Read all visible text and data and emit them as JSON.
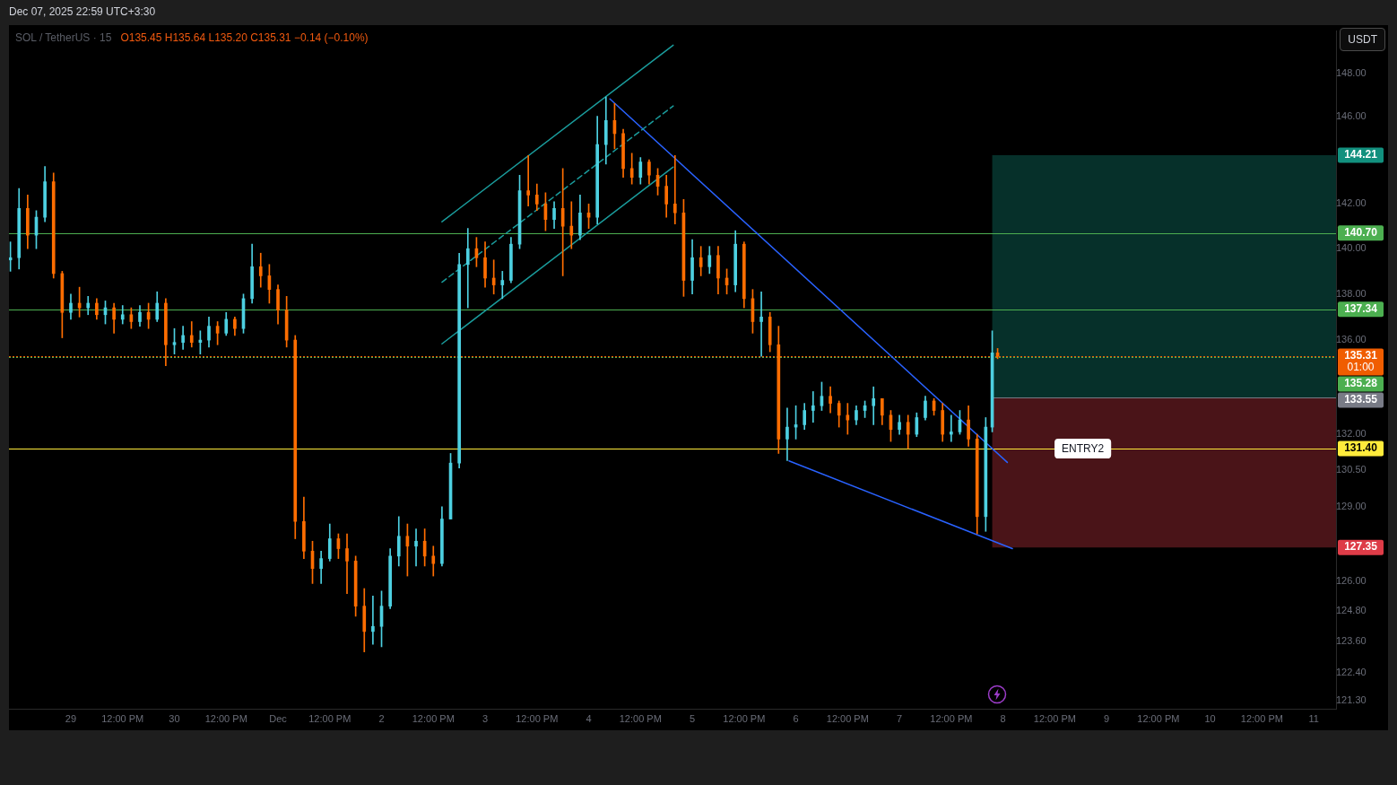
{
  "chart_data": {
    "type": "candlestick",
    "title": "SOL / TetherUS · 15",
    "subtitle": "O135.45 H135.64 L135.20 C135.31 −0.14 (−0.10%)",
    "ylabel": "USDT",
    "log": true,
    "annotations": [
      "Dec 07, 2025 22:59 UTC+3:30",
      "01:00",
      {
        "text": "ENTRY2",
        "x": "2025-12-08T18:30",
        "y": 131.4
      }
    ],
    "x": [
      "2025-11-28T10:00",
      "2025-11-28T12:00",
      "2025-11-28T14:00",
      "2025-11-28T16:00",
      "2025-11-28T18:00",
      "2025-11-28T20:00",
      "2025-11-28T22:00",
      "2025-11-29T00:00",
      "2025-11-29T02:00",
      "2025-11-29T04:00",
      "2025-11-29T06:00",
      "2025-11-29T08:00",
      "2025-11-29T10:00",
      "2025-11-29T12:00",
      "2025-11-29T14:00",
      "2025-11-29T16:00",
      "2025-11-29T18:00",
      "2025-11-29T20:00",
      "2025-11-29T22:00",
      "2025-11-30T00:00",
      "2025-11-30T02:00",
      "2025-11-30T04:00",
      "2025-11-30T06:00",
      "2025-11-30T08:00",
      "2025-11-30T10:00",
      "2025-11-30T12:00",
      "2025-11-30T14:00",
      "2025-11-30T16:00",
      "2025-11-30T18:00",
      "2025-11-30T20:00",
      "2025-11-30T22:00",
      "2025-12-01T00:00",
      "2025-12-01T02:00",
      "2025-12-01T04:00",
      "2025-12-01T06:00",
      "2025-12-01T08:00",
      "2025-12-01T10:00",
      "2025-12-01T12:00",
      "2025-12-01T14:00",
      "2025-12-01T16:00",
      "2025-12-01T18:00",
      "2025-12-01T20:00",
      "2025-12-01T22:00",
      "2025-12-02T00:00",
      "2025-12-02T02:00",
      "2025-12-02T04:00",
      "2025-12-02T06:00",
      "2025-12-02T08:00",
      "2025-12-02T10:00",
      "2025-12-02T12:00",
      "2025-12-02T14:00",
      "2025-12-02T16:00",
      "2025-12-02T18:00",
      "2025-12-02T20:00",
      "2025-12-02T22:00",
      "2025-12-03T00:00",
      "2025-12-03T02:00",
      "2025-12-03T04:00",
      "2025-12-03T06:00",
      "2025-12-03T08:00",
      "2025-12-03T10:00",
      "2025-12-03T12:00",
      "2025-12-03T14:00",
      "2025-12-03T16:00",
      "2025-12-03T18:00",
      "2025-12-03T20:00",
      "2025-12-03T22:00",
      "2025-12-04T00:00",
      "2025-12-04T02:00",
      "2025-12-04T04:00",
      "2025-12-04T06:00",
      "2025-12-04T08:00",
      "2025-12-04T10:00",
      "2025-12-04T12:00",
      "2025-12-04T14:00",
      "2025-12-04T16:00",
      "2025-12-04T18:00",
      "2025-12-04T20:00",
      "2025-12-04T22:00",
      "2025-12-05T00:00",
      "2025-12-05T02:00",
      "2025-12-05T04:00",
      "2025-12-05T06:00",
      "2025-12-05T08:00",
      "2025-12-05T10:00",
      "2025-12-05T12:00",
      "2025-12-05T14:00",
      "2025-12-05T16:00",
      "2025-12-05T18:00",
      "2025-12-05T20:00",
      "2025-12-05T22:00",
      "2025-12-06T00:00",
      "2025-12-06T02:00",
      "2025-12-06T04:00",
      "2025-12-06T06:00",
      "2025-12-06T08:00",
      "2025-12-06T10:00",
      "2025-12-06T12:00",
      "2025-12-06T14:00",
      "2025-12-06T16:00",
      "2025-12-06T18:00",
      "2025-12-06T20:00",
      "2025-12-06T22:00",
      "2025-12-07T00:00",
      "2025-12-07T02:00",
      "2025-12-07T04:00",
      "2025-12-07T06:00",
      "2025-12-07T08:00",
      "2025-12-07T10:00",
      "2025-12-07T12:00",
      "2025-12-07T14:00",
      "2025-12-07T16:00",
      "2025-12-07T18:00",
      "2025-12-07T20:00",
      "2025-12-07T21:30",
      "2025-12-07T22:45"
    ],
    "ohlc": [
      [
        139.5,
        140.3,
        139.0,
        139.6
      ],
      [
        139.6,
        142.7,
        139.1,
        141.8
      ],
      [
        141.8,
        142.4,
        140.0,
        140.6
      ],
      [
        140.6,
        141.7,
        140.0,
        141.4
      ],
      [
        141.4,
        143.7,
        141.2,
        143.0
      ],
      [
        143.0,
        143.4,
        138.7,
        138.9
      ],
      [
        138.9,
        139.0,
        136.1,
        137.2
      ],
      [
        137.2,
        138.0,
        136.9,
        137.6
      ],
      [
        137.6,
        138.3,
        137.0,
        137.4
      ],
      [
        137.4,
        137.9,
        137.1,
        137.6
      ],
      [
        137.6,
        137.8,
        136.9,
        137.1
      ],
      [
        137.1,
        137.7,
        136.7,
        137.4
      ],
      [
        137.4,
        137.6,
        136.3,
        136.9
      ],
      [
        136.9,
        137.5,
        136.7,
        137.1
      ],
      [
        137.1,
        137.4,
        136.5,
        136.8
      ],
      [
        136.8,
        137.5,
        136.6,
        137.2
      ],
      [
        137.2,
        137.6,
        136.5,
        136.9
      ],
      [
        136.9,
        138.1,
        136.8,
        137.6
      ],
      [
        137.6,
        137.8,
        134.9,
        135.8
      ],
      [
        135.8,
        136.5,
        135.4,
        135.9
      ],
      [
        135.9,
        136.6,
        135.6,
        136.2
      ],
      [
        136.2,
        136.8,
        135.7,
        135.9
      ],
      [
        135.9,
        136.4,
        135.4,
        136.0
      ],
      [
        136.0,
        137.0,
        135.7,
        136.6
      ],
      [
        136.6,
        136.8,
        135.8,
        136.3
      ],
      [
        136.3,
        137.2,
        136.2,
        136.9
      ],
      [
        136.9,
        137.0,
        136.2,
        136.5
      ],
      [
        136.5,
        138.0,
        136.3,
        137.8
      ],
      [
        137.8,
        140.2,
        137.6,
        139.2
      ],
      [
        139.2,
        139.8,
        138.3,
        138.8
      ],
      [
        138.8,
        139.3,
        137.6,
        138.2
      ],
      [
        138.2,
        138.4,
        136.7,
        137.3
      ],
      [
        137.3,
        137.9,
        135.7,
        136.0
      ],
      [
        136.0,
        136.2,
        127.7,
        128.4
      ],
      [
        128.4,
        129.4,
        126.9,
        127.2
      ],
      [
        127.2,
        127.6,
        125.9,
        126.5
      ],
      [
        126.5,
        127.2,
        125.9,
        126.9
      ],
      [
        126.9,
        128.3,
        126.8,
        127.7
      ],
      [
        127.7,
        127.9,
        126.9,
        127.3
      ],
      [
        127.3,
        127.9,
        125.5,
        126.8
      ],
      [
        126.8,
        127.0,
        124.6,
        125.0
      ],
      [
        125.0,
        125.7,
        123.2,
        124.0
      ],
      [
        124.0,
        125.4,
        123.5,
        124.2
      ],
      [
        124.2,
        125.6,
        123.4,
        125.0
      ],
      [
        125.0,
        127.3,
        124.9,
        127.0
      ],
      [
        127.0,
        128.6,
        126.6,
        127.8
      ],
      [
        127.8,
        128.3,
        126.2,
        127.4
      ],
      [
        127.4,
        128.1,
        126.6,
        127.6
      ],
      [
        127.6,
        128.1,
        126.6,
        127.0
      ],
      [
        127.0,
        127.4,
        126.2,
        126.7
      ],
      [
        126.7,
        129.0,
        126.6,
        128.5
      ],
      [
        128.5,
        131.2,
        128.5,
        130.8
      ],
      [
        130.8,
        139.8,
        130.6,
        139.3
      ],
      [
        139.3,
        140.9,
        137.4,
        140.0
      ],
      [
        140.0,
        140.5,
        139.2,
        139.6
      ],
      [
        139.6,
        140.3,
        138.3,
        138.7
      ],
      [
        138.7,
        139.5,
        138.0,
        138.4
      ],
      [
        138.4,
        139.0,
        137.8,
        138.6
      ],
      [
        138.6,
        140.5,
        138.5,
        140.2
      ],
      [
        140.2,
        143.3,
        140.0,
        142.6
      ],
      [
        142.6,
        144.2,
        141.9,
        142.4
      ],
      [
        142.4,
        142.9,
        141.7,
        142.0
      ],
      [
        142.0,
        142.5,
        140.8,
        141.3
      ],
      [
        141.3,
        142.1,
        140.9,
        141.8
      ],
      [
        141.8,
        143.6,
        138.8,
        141.0
      ],
      [
        141.0,
        142.1,
        140.0,
        140.6
      ],
      [
        140.6,
        142.4,
        140.4,
        141.6
      ],
      [
        141.6,
        142.0,
        140.9,
        141.4
      ],
      [
        141.4,
        146.0,
        141.1,
        144.7
      ],
      [
        144.7,
        146.9,
        143.8,
        145.8
      ],
      [
        145.8,
        146.6,
        144.5,
        145.2
      ],
      [
        145.2,
        145.4,
        143.2,
        143.6
      ],
      [
        143.6,
        144.3,
        142.9,
        143.2
      ],
      [
        143.2,
        144.1,
        142.9,
        143.9
      ],
      [
        143.9,
        144.0,
        142.9,
        143.3
      ],
      [
        143.3,
        143.6,
        142.4,
        142.8
      ],
      [
        142.8,
        143.3,
        141.4,
        142.0
      ],
      [
        142.0,
        144.2,
        141.1,
        141.6
      ],
      [
        141.6,
        142.2,
        137.9,
        138.6
      ],
      [
        138.6,
        140.4,
        138.0,
        139.6
      ],
      [
        139.6,
        140.1,
        138.8,
        139.2
      ],
      [
        139.2,
        140.1,
        138.9,
        139.7
      ],
      [
        139.7,
        140.1,
        138.0,
        138.7
      ],
      [
        138.7,
        139.1,
        138.0,
        138.4
      ],
      [
        138.4,
        140.8,
        138.1,
        140.2
      ],
      [
        140.2,
        140.3,
        137.4,
        137.8
      ],
      [
        137.8,
        138.2,
        136.3,
        136.8
      ],
      [
        136.8,
        138.1,
        135.3,
        137.0
      ],
      [
        137.0,
        137.2,
        135.5,
        135.8
      ],
      [
        135.8,
        136.6,
        131.2,
        131.8
      ],
      [
        131.8,
        133.1,
        130.9,
        132.3
      ],
      [
        132.3,
        133.2,
        131.8,
        132.4
      ],
      [
        132.4,
        133.3,
        132.2,
        133.0
      ],
      [
        133.0,
        133.8,
        132.5,
        133.2
      ],
      [
        133.2,
        134.2,
        133.0,
        133.6
      ],
      [
        133.6,
        134.0,
        132.9,
        133.3
      ],
      [
        133.3,
        133.4,
        132.3,
        132.8
      ],
      [
        132.8,
        133.3,
        132.0,
        132.6
      ],
      [
        132.6,
        133.2,
        132.4,
        133.0
      ],
      [
        133.0,
        133.4,
        132.7,
        133.2
      ],
      [
        133.2,
        134.0,
        132.4,
        133.5
      ],
      [
        133.5,
        133.5,
        132.4,
        132.8
      ],
      [
        132.8,
        133.0,
        131.7,
        132.2
      ],
      [
        132.2,
        132.8,
        132.0,
        132.5
      ],
      [
        132.5,
        132.8,
        131.4,
        132.0
      ],
      [
        132.0,
        132.9,
        131.9,
        132.7
      ],
      [
        132.7,
        133.6,
        132.6,
        133.4
      ],
      [
        133.4,
        133.5,
        132.8,
        133.0
      ],
      [
        133.0,
        133.3,
        131.7,
        132.0
      ],
      [
        132.0,
        132.8,
        131.7,
        132.1
      ],
      [
        132.1,
        133.0,
        132.0,
        132.6
      ],
      [
        132.6,
        133.2,
        131.5,
        131.8
      ],
      [
        131.8,
        132.0,
        127.9,
        128.6
      ],
      [
        128.6,
        132.7,
        128.0,
        132.3
      ],
      [
        132.3,
        136.4,
        132.1,
        135.45
      ],
      [
        135.45,
        135.64,
        135.2,
        135.31
      ]
    ],
    "colors": [
      "#4dd0e1",
      "#4dd0e1",
      "#ff6d00",
      "#4dd0e1",
      "#4dd0e1",
      "#ff6d00",
      "#ff6d00",
      "#4dd0e1",
      "#ff6d00",
      "#4dd0e1",
      "#ff6d00",
      "#4dd0e1",
      "#ff6d00",
      "#4dd0e1",
      "#ff6d00",
      "#4dd0e1",
      "#ff6d00",
      "#4dd0e1",
      "#ff6d00",
      "#4dd0e1",
      "#4dd0e1",
      "#ff6d00",
      "#4dd0e1",
      "#4dd0e1",
      "#ff6d00",
      "#4dd0e1",
      "#ff6d00",
      "#4dd0e1",
      "#4dd0e1",
      "#ff6d00",
      "#ff6d00",
      "#ff6d00",
      "#ff6d00",
      "#ff6d00",
      "#ff6d00",
      "#ff6d00",
      "#4dd0e1",
      "#4dd0e1",
      "#ff6d00",
      "#ff6d00",
      "#ff6d00",
      "#ff6d00",
      "#4dd0e1",
      "#4dd0e1",
      "#4dd0e1",
      "#4dd0e1",
      "#ff6d00",
      "#4dd0e1",
      "#ff6d00",
      "#ff6d00",
      "#4dd0e1",
      "#4dd0e1",
      "#4dd0e1",
      "#4dd0e1",
      "#ff6d00",
      "#ff6d00",
      "#ff6d00",
      "#4dd0e1",
      "#4dd0e1",
      "#4dd0e1",
      "#ff6d00",
      "#ff6d00",
      "#ff6d00",
      "#4dd0e1",
      "#ff6d00",
      "#ff6d00",
      "#4dd0e1",
      "#ff6d00",
      "#4dd0e1",
      "#4dd0e1",
      "#ff6d00",
      "#ff6d00",
      "#ff6d00",
      "#4dd0e1",
      "#ff6d00",
      "#ff6d00",
      "#ff6d00",
      "#ff6d00",
      "#ff6d00",
      "#4dd0e1",
      "#ff6d00",
      "#4dd0e1",
      "#ff6d00",
      "#ff6d00",
      "#4dd0e1",
      "#ff6d00",
      "#ff6d00",
      "#4dd0e1",
      "#ff6d00",
      "#ff6d00",
      "#4dd0e1",
      "#4dd0e1",
      "#4dd0e1",
      "#4dd0e1",
      "#4dd0e1",
      "#ff6d00",
      "#ff6d00",
      "#ff6d00",
      "#4dd0e1",
      "#4dd0e1",
      "#4dd0e1",
      "#ff6d00",
      "#ff6d00",
      "#4dd0e1",
      "#ff6d00",
      "#4dd0e1",
      "#4dd0e1",
      "#ff6d00",
      "#ff6d00",
      "#4dd0e1",
      "#4dd0e1",
      "#ff6d00",
      "#ff6d00",
      "#4dd0e1",
      "#4dd0e1",
      "#ff6d00"
    ],
    "series": [
      {
        "type": "line",
        "color": "#1a9c9c",
        "line_style": "solid",
        "x": [
          "2025-12-02T14:00",
          "2025-12-04T19:35"
        ],
        "values": [
          141.2,
          149.33
        ]
      },
      {
        "type": "line",
        "color": "#1a9c9c",
        "line_style": "dashed",
        "x": [
          "2025-12-02T14:00",
          "2025-12-04T19:35"
        ],
        "values": [
          138.52,
          146.48
        ]
      },
      {
        "type": "line",
        "color": "#1a9c9c",
        "line_style": "solid",
        "x": [
          "2025-12-02T14:00",
          "2025-12-04T19:35"
        ],
        "values": [
          135.84,
          143.67
        ]
      },
      {
        "type": "line",
        "color": "#2962ff",
        "line_style": "solid",
        "x": [
          "2025-12-04T04:55",
          "2025-12-08T01:00"
        ],
        "values": [
          146.81,
          130.83
        ]
      },
      {
        "type": "line",
        "color": "#2962ff",
        "line_style": "solid",
        "x": [
          "2025-12-05T22:25",
          "2025-12-08T02:10"
        ],
        "values": [
          130.89,
          127.3
        ]
      }
    ],
    "ref_lines": [
      {
        "axis": "y",
        "value": 140.7,
        "color": "#4caf50",
        "label": "140.70"
      },
      {
        "axis": "y",
        "value": 137.34,
        "color": "#4caf50",
        "label": "137.34"
      },
      {
        "axis": "y",
        "value": 135.31,
        "color": "#f05d00",
        "line_style": "dotted",
        "label": "135.31"
      },
      {
        "axis": "y",
        "value": 135.28,
        "color": "#4caf50",
        "line_style": "dotted",
        "label": "135.28"
      },
      {
        "axis": "y",
        "value": 133.55,
        "color": "#787b86",
        "label": "133.55"
      },
      {
        "axis": "y",
        "value": 131.4,
        "color": "#ffeb3b",
        "label": "131.40"
      }
    ],
    "bands": [
      {
        "axis": "y",
        "from": 133.55,
        "to": 144.21,
        "color": "#06302a",
        "label": "144.21"
      },
      {
        "axis": "y",
        "from": 127.35,
        "to": 133.55,
        "color": "#4a1418",
        "label": "127.35"
      }
    ],
    "xlim": [
      "2025-11-28T09:40",
      "2025-12-11T05:10"
    ],
    "xticks": [
      {
        "value": "2025-11-29",
        "label": "29"
      },
      {
        "value": "2025-11-29T12:00",
        "label": "12:00 PM"
      },
      {
        "value": "2025-11-30",
        "label": "30"
      },
      {
        "value": "2025-11-30T12:00",
        "label": "12:00 PM"
      },
      {
        "value": "2025-12-01",
        "label": "Dec"
      },
      {
        "value": "2025-12-01T12:00",
        "label": "12:00 PM"
      },
      {
        "value": "2025-12-02",
        "label": "2"
      },
      {
        "value": "2025-12-02T12:00",
        "label": "12:00 PM"
      },
      {
        "value": "2025-12-03",
        "label": "3"
      },
      {
        "value": "2025-12-03T12:00",
        "label": "12:00 PM"
      },
      {
        "value": "2025-12-04",
        "label": "4"
      },
      {
        "value": "2025-12-04T12:00",
        "label": "12:00 PM"
      },
      {
        "value": "2025-12-05",
        "label": "5"
      },
      {
        "value": "2025-12-05T12:00",
        "label": "12:00 PM"
      },
      {
        "value": "2025-12-06",
        "label": "6"
      },
      {
        "value": "2025-12-06T12:00",
        "label": "12:00 PM"
      },
      {
        "value": "2025-12-07",
        "label": "7"
      },
      {
        "value": "2025-12-07T12:00",
        "label": "12:00 PM"
      },
      {
        "value": "2025-12-08",
        "label": "8"
      },
      {
        "value": "2025-12-08T12:00",
        "label": "12:00 PM"
      },
      {
        "value": "2025-12-09",
        "label": "9"
      },
      {
        "value": "2025-12-09T12:00",
        "label": "12:00 PM"
      },
      {
        "value": "2025-12-10",
        "label": "10"
      },
      {
        "value": "2025-12-10T12:00",
        "label": "12:00 PM"
      },
      {
        "value": "2025-12-11",
        "label": "11"
      }
    ],
    "ylim": [
      121.0,
      150.0
    ],
    "yticks": [
      {
        "value": 148,
        "label": "148.00"
      },
      {
        "value": 146,
        "label": "146.00"
      },
      {
        "value": 142,
        "label": "142.00"
      },
      {
        "value": 140,
        "label": "140.00"
      },
      {
        "value": 138,
        "label": "138.00"
      },
      {
        "value": 136,
        "label": "136.00"
      },
      {
        "value": 132,
        "label": "132.00"
      },
      {
        "value": 130.5,
        "label": "130.50"
      },
      {
        "value": 129,
        "label": "129.00"
      },
      {
        "value": 126,
        "label": "126.00"
      },
      {
        "value": 124.8,
        "label": "124.80"
      },
      {
        "value": 123.6,
        "label": "123.60"
      },
      {
        "value": 122.4,
        "label": "122.40"
      },
      {
        "value": 121.3,
        "label": "121.30"
      }
    ]
  }
}
